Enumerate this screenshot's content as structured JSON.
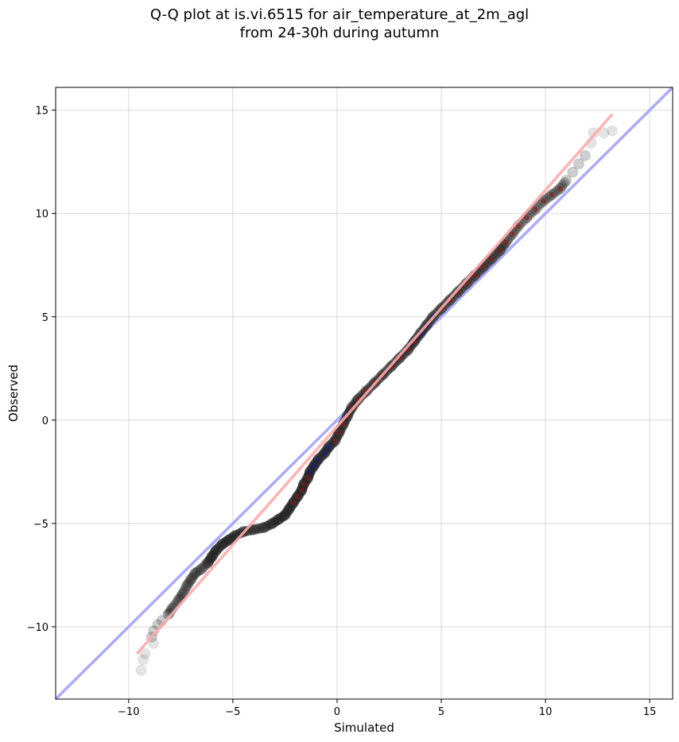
{
  "chart_data": {
    "type": "scatter",
    "title": "Q-Q plot at is.vi.6515 for air_temperature_at_2m_agl",
    "subtitle": "from 24-30h during autumn",
    "xlabel": "Simulated",
    "ylabel": "Observed",
    "xlim": [
      -13.5,
      16.1
    ],
    "ylim": [
      -13.5,
      16.1
    ],
    "xticks": [
      "−10",
      "−5",
      "0",
      "5",
      "10",
      "15"
    ],
    "yticks": [
      "−10",
      "−5",
      "0",
      "5",
      "10",
      "15"
    ],
    "xtick_values": [
      -10,
      -5,
      0,
      5,
      10,
      15
    ],
    "ytick_values": [
      -10,
      -5,
      0,
      5,
      10,
      15
    ],
    "grid": true,
    "reference_line": {
      "slope": 1,
      "intercept": 0,
      "color": "#aaaaff"
    },
    "fit_line": {
      "x": [
        -9.6,
        13.2
      ],
      "y": [
        -11.3,
        14.8
      ],
      "color": "#ffaaaa"
    },
    "quantiles": [
      {
        "x": -9.4,
        "y": -12.1
      },
      {
        "x": -9.3,
        "y": -11.6
      },
      {
        "x": -9.2,
        "y": -11.3
      },
      {
        "x": -8.8,
        "y": -10.8
      },
      {
        "x": -8.9,
        "y": -10.5
      },
      {
        "x": -8.8,
        "y": -10.2
      },
      {
        "x": -8.6,
        "y": -9.9
      },
      {
        "x": -8.4,
        "y": -9.7
      },
      {
        "x": -8.1,
        "y": -9.4
      },
      {
        "x": -7.9,
        "y": -9.1
      },
      {
        "x": -7.6,
        "y": -8.7
      },
      {
        "x": -7.4,
        "y": -8.4
      },
      {
        "x": -7.2,
        "y": -8.0
      },
      {
        "x": -7.0,
        "y": -7.7
      },
      {
        "x": -6.8,
        "y": -7.4
      },
      {
        "x": -6.5,
        "y": -7.2
      },
      {
        "x": -6.2,
        "y": -6.9
      },
      {
        "x": -6.0,
        "y": -6.6
      },
      {
        "x": -5.8,
        "y": -6.3
      },
      {
        "x": -5.5,
        "y": -6.0
      },
      {
        "x": -5.2,
        "y": -5.8
      },
      {
        "x": -4.9,
        "y": -5.6
      },
      {
        "x": -4.5,
        "y": -5.4
      },
      {
        "x": -4.0,
        "y": -5.3
      },
      {
        "x": -3.5,
        "y": -5.2
      },
      {
        "x": -3.1,
        "y": -5.0
      },
      {
        "x": -2.8,
        "y": -4.8
      },
      {
        "x": -2.5,
        "y": -4.6
      },
      {
        "x": -2.3,
        "y": -4.3
      },
      {
        "x": -2.1,
        "y": -4.0
      },
      {
        "x": -1.9,
        "y": -3.7
      },
      {
        "x": -1.7,
        "y": -3.4
      },
      {
        "x": -1.6,
        "y": -3.1
      },
      {
        "x": -1.4,
        "y": -2.8
      },
      {
        "x": -1.3,
        "y": -2.5
      },
      {
        "x": -1.1,
        "y": -2.2
      },
      {
        "x": -0.9,
        "y": -1.9
      },
      {
        "x": -0.6,
        "y": -1.6
      },
      {
        "x": -0.4,
        "y": -1.3
      },
      {
        "x": -0.1,
        "y": -1.0
      },
      {
        "x": 0.1,
        "y": -0.6
      },
      {
        "x": 0.3,
        "y": -0.2
      },
      {
        "x": 0.5,
        "y": 0.2
      },
      {
        "x": 0.7,
        "y": 0.6
      },
      {
        "x": 1.0,
        "y": 1.0
      },
      {
        "x": 1.4,
        "y": 1.4
      },
      {
        "x": 1.8,
        "y": 1.8
      },
      {
        "x": 2.2,
        "y": 2.2
      },
      {
        "x": 2.6,
        "y": 2.6
      },
      {
        "x": 3.0,
        "y": 3.0
      },
      {
        "x": 3.4,
        "y": 3.4
      },
      {
        "x": 3.7,
        "y": 3.8
      },
      {
        "x": 4.0,
        "y": 4.2
      },
      {
        "x": 4.3,
        "y": 4.6
      },
      {
        "x": 4.6,
        "y": 5.0
      },
      {
        "x": 5.0,
        "y": 5.4
      },
      {
        "x": 5.4,
        "y": 5.8
      },
      {
        "x": 5.8,
        "y": 6.2
      },
      {
        "x": 6.2,
        "y": 6.6
      },
      {
        "x": 6.6,
        "y": 7.0
      },
      {
        "x": 7.0,
        "y": 7.4
      },
      {
        "x": 7.4,
        "y": 7.8
      },
      {
        "x": 7.8,
        "y": 8.2
      },
      {
        "x": 8.1,
        "y": 8.6
      },
      {
        "x": 8.4,
        "y": 9.0
      },
      {
        "x": 8.7,
        "y": 9.4
      },
      {
        "x": 9.1,
        "y": 9.8
      },
      {
        "x": 9.5,
        "y": 10.2
      },
      {
        "x": 9.9,
        "y": 10.6
      },
      {
        "x": 10.3,
        "y": 10.9
      },
      {
        "x": 10.7,
        "y": 11.2
      },
      {
        "x": 11.0,
        "y": 11.6
      },
      {
        "x": 11.3,
        "y": 12.0
      },
      {
        "x": 11.6,
        "y": 12.4
      },
      {
        "x": 11.9,
        "y": 12.8
      },
      {
        "x": 12.2,
        "y": 13.4
      },
      {
        "x": 12.3,
        "y": 13.9
      },
      {
        "x": 12.8,
        "y": 13.9
      },
      {
        "x": 13.2,
        "y": 14.0
      }
    ]
  }
}
